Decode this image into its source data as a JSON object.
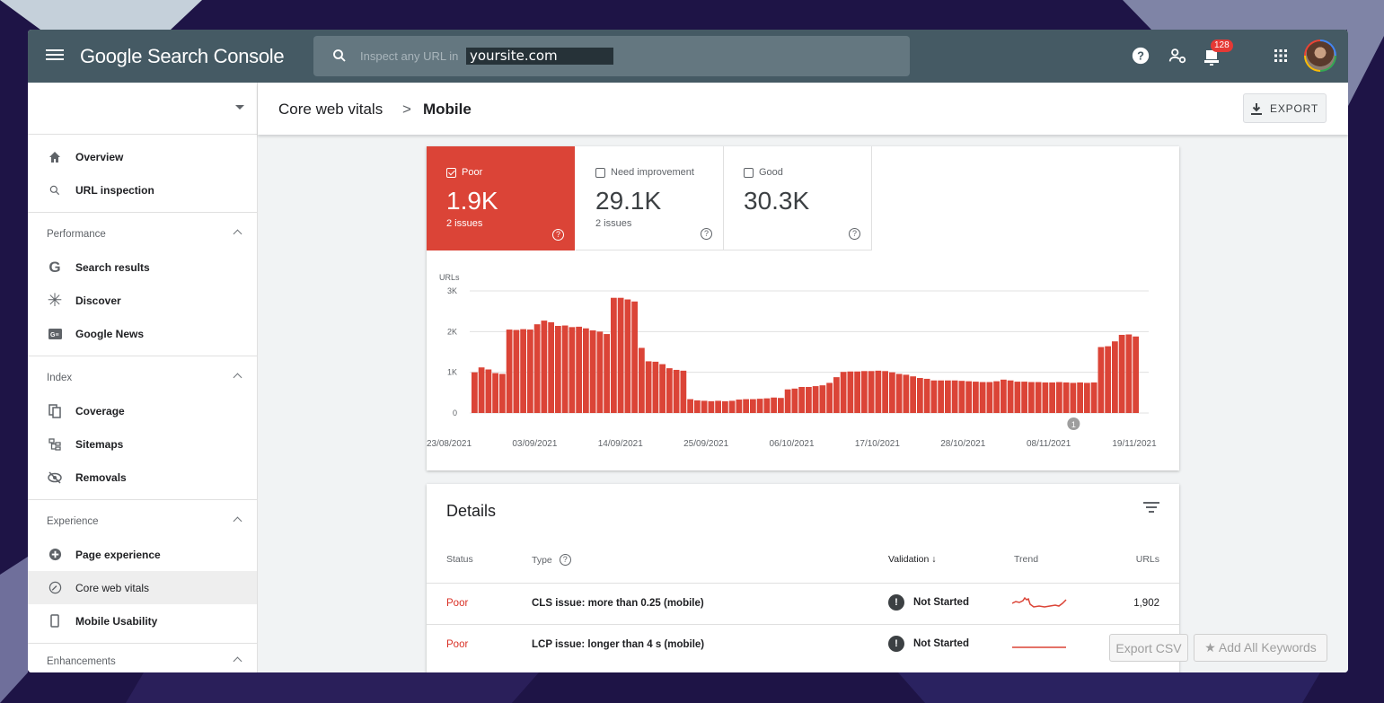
{
  "app": {
    "menu_icon": "hamburger-menu-icon",
    "brand": "Google Search Console"
  },
  "search": {
    "placeholder": "Inspect any URL in",
    "domain": "yoursite.com"
  },
  "topbar": {
    "notifications_count": "128",
    "icons": [
      "help-icon",
      "manage-users-icon",
      "notifications-icon",
      "apps-grid-icon",
      "avatar"
    ]
  },
  "breadcrumb": {
    "parent": "Core web vitals",
    "separator": ">",
    "current": "Mobile"
  },
  "export_label": "EXPORT",
  "sidebar": {
    "top_items": [
      {
        "label": "Overview",
        "icon": "home-icon"
      },
      {
        "label": "URL inspection",
        "icon": "search-icon"
      }
    ],
    "sections": [
      {
        "title": "Performance",
        "items": [
          {
            "label": "Search results",
            "icon": "google-g-icon"
          },
          {
            "label": "Discover",
            "icon": "asterisk-icon"
          },
          {
            "label": "Google News",
            "icon": "google-news-icon"
          }
        ]
      },
      {
        "title": "Index",
        "items": [
          {
            "label": "Coverage",
            "icon": "file-copy-icon"
          },
          {
            "label": "Sitemaps",
            "icon": "sitemap-icon"
          },
          {
            "label": "Removals",
            "icon": "eye-off-icon"
          }
        ]
      },
      {
        "title": "Experience",
        "items": [
          {
            "label": "Page experience",
            "icon": "plus-circle-icon"
          },
          {
            "label": "Core web vitals",
            "icon": "gauge-icon",
            "active": true
          },
          {
            "label": "Mobile Usability",
            "icon": "phone-icon"
          }
        ]
      },
      {
        "title": "Enhancements"
      }
    ]
  },
  "tiles": {
    "poor": {
      "label": "Poor",
      "value": "1.9K",
      "issues": "2 issues",
      "checked": true,
      "color": "#db4437"
    },
    "need": {
      "label": "Need improvement",
      "value": "29.1K",
      "issues": "2 issues",
      "checked": false
    },
    "good": {
      "label": "Good",
      "value": "30.3K",
      "checked": false
    }
  },
  "chart_data": {
    "type": "bar",
    "ylabel": "URLs",
    "ylim": [
      0,
      3000
    ],
    "yticks": [
      "0",
      "1K",
      "2K",
      "3K"
    ],
    "xticks": [
      "23/08/2021",
      "03/09/2021",
      "14/09/2021",
      "25/09/2021",
      "06/10/2021",
      "17/10/2021",
      "28/10/2021",
      "08/11/2021",
      "19/11/2021"
    ],
    "annotation": "1",
    "color": "#db4437",
    "values": [
      1000,
      1120,
      1070,
      980,
      960,
      2050,
      2040,
      2060,
      2050,
      2180,
      2270,
      2230,
      2140,
      2150,
      2110,
      2120,
      2080,
      2030,
      2000,
      1940,
      2830,
      2830,
      2790,
      2740,
      1600,
      1270,
      1260,
      1200,
      1100,
      1060,
      1040,
      340,
      310,
      300,
      290,
      300,
      290,
      300,
      330,
      340,
      340,
      350,
      360,
      380,
      370,
      580,
      600,
      640,
      640,
      660,
      680,
      740,
      880,
      1010,
      1020,
      1020,
      1030,
      1030,
      1040,
      1030,
      1000,
      960,
      940,
      900,
      860,
      840,
      800,
      800,
      800,
      800,
      790,
      780,
      770,
      760,
      760,
      780,
      820,
      800,
      770,
      770,
      760,
      760,
      750,
      750,
      760,
      750,
      740,
      750,
      740,
      750,
      1620,
      1640,
      1760,
      1920,
      1930,
      1880
    ]
  },
  "details": {
    "title": "Details",
    "headers": {
      "status": "Status",
      "type": "Type",
      "validation": "Validation",
      "trend": "Trend",
      "urls": "URLs"
    },
    "rows": [
      {
        "status": "Poor",
        "type": "CLS issue: more than 0.25 (mobile)",
        "validation": "Not Started",
        "urls": "1,902"
      },
      {
        "status": "Poor",
        "type": "LCP issue: longer than 4 s (mobile)",
        "validation": "Not Started",
        "urls": ""
      }
    ]
  },
  "overlay": {
    "export_csv": "Export CSV",
    "add_keywords": "★ Add All Keywords"
  }
}
